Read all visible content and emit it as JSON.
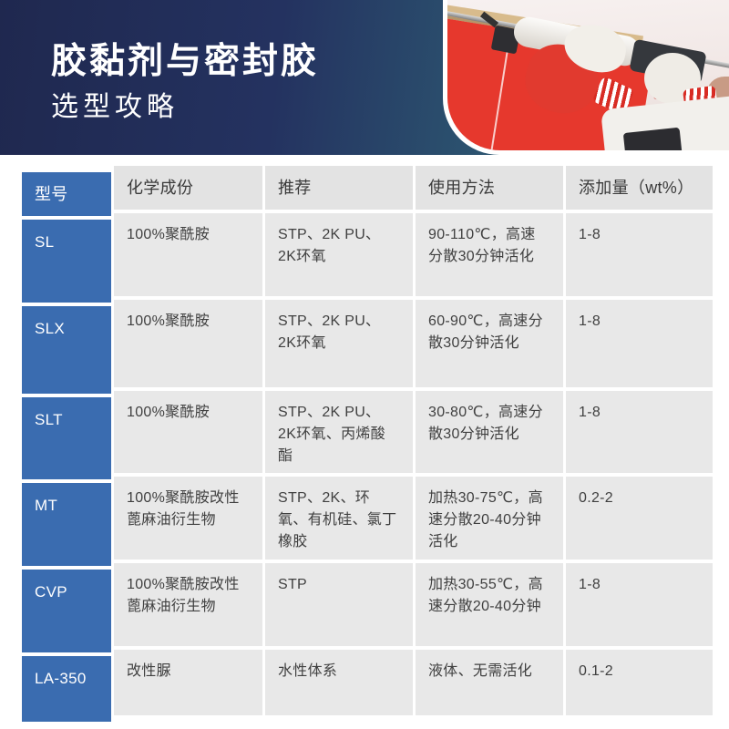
{
  "banner": {
    "title_line1": "胶黏剂与密封胶",
    "title_line2": "选型攻略"
  },
  "photo": {
    "description": "worker in red-and-white gloves applying sealant to ceiling edge with caulking gun"
  },
  "colors": {
    "banner_navy": "#1f284f",
    "banner_teal": "#3d8d83",
    "model_column_blue": "#3a6cb0",
    "cell_gray": "#e8e8e8",
    "header_gray": "#e3e3e3",
    "photo_wall_red": "#e6382d",
    "text_dark": "#404040"
  },
  "table": {
    "headers": [
      "型号",
      "化学成份",
      "推荐",
      "使用方法",
      "添加量（wt%）"
    ],
    "rows": [
      {
        "model": "SL",
        "chemistry": "100%聚酰胺",
        "recommended": "STP、2K PU、2K环氧",
        "usage": "90-110℃，高速分散30分钟活化",
        "dosage": "1-8"
      },
      {
        "model": "SLX",
        "chemistry": "100%聚酰胺",
        "recommended": "STP、2K PU、2K环氧",
        "usage": "60-90℃，高速分散30分钟活化",
        "dosage": "1-8"
      },
      {
        "model": "SLT",
        "chemistry": "100%聚酰胺",
        "recommended": "STP、2K PU、2K环氧、丙烯酸酯",
        "usage": "30-80℃，高速分散30分钟活化",
        "dosage": "1-8"
      },
      {
        "model": "MT",
        "chemistry": "100%聚酰胺改性蓖麻油衍生物",
        "recommended": "STP、2K、环氧、有机硅、氯丁橡胶",
        "usage": "加热30-75℃，高速分散20-40分钟活化",
        "dosage": "0.2-2"
      },
      {
        "model": "CVP",
        "chemistry": "100%聚酰胺改性蓖麻油衍生物",
        "recommended": "STP",
        "usage": "加热30-55℃，高速分散20-40分钟",
        "dosage": "1-8"
      },
      {
        "model": "LA-350",
        "chemistry": "改性脲",
        "recommended": "水性体系",
        "usage": "液体、无需活化",
        "dosage": "0.1-2"
      }
    ]
  }
}
